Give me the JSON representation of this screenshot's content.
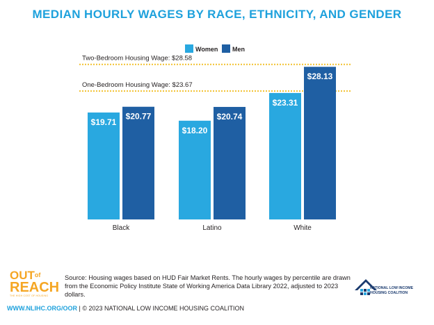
{
  "title": "MEDIAN HOURLY WAGES BY RACE, ETHNICITY, AND GENDER",
  "colors": {
    "women": "#29a8e0",
    "men": "#1f5fa3",
    "reference": "#f2c12e",
    "title": "#1ea1dc"
  },
  "chart_data": {
    "type": "bar",
    "categories": [
      "Black",
      "Latino",
      "White"
    ],
    "series": [
      {
        "name": "Women",
        "values": [
          19.71,
          18.2,
          23.31
        ],
        "labels": [
          "$19.71",
          "$18.20",
          "$23.31"
        ]
      },
      {
        "name": "Men",
        "values": [
          20.77,
          20.74,
          28.13
        ],
        "labels": [
          "$20.77",
          "$20.74",
          "$28.13"
        ]
      }
    ],
    "reference_lines": [
      {
        "label": "Two-Bedroom Housing Wage: $28.58",
        "value": 28.58
      },
      {
        "label": "One-Bedroom Housing Wage: $23.67",
        "value": 23.67
      }
    ],
    "legend_position": "top-center",
    "grid": false
  },
  "logo": {
    "out": "OUT",
    "of": "of",
    "reach": "REACH",
    "sub": "THE HIGH COST OF HOUSING"
  },
  "source": "Source: Housing wages based on HUD Fair Market Rents. The hourly wages by percentile are drawn from the Economic Policy Institute State of Working America Data Library 2022, adjusted to 2023 dollars.",
  "footer": {
    "url": "WWW.NLIHC.ORG/OOR",
    "copyright": " | © 2023 NATIONAL LOW INCOME HOUSING COALITION"
  },
  "org_name": "NATIONAL LOW INCOME HOUSING COALITION"
}
